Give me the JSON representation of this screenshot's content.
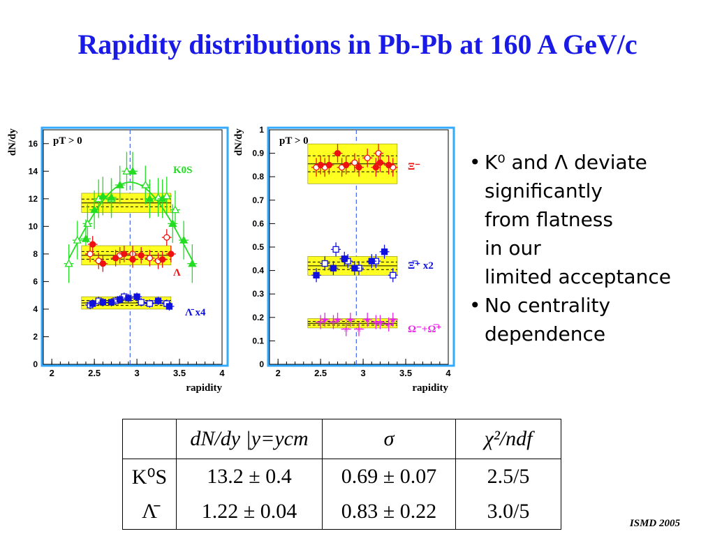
{
  "slide": {
    "title": "Rapidity distributions in Pb-Pb at 160 A GeV/c",
    "bullets": [
      {
        "lines": [
          "K⁰ and Λ deviate",
          "significantly",
          "from flatness",
          "in our",
          "limited acceptance"
        ]
      },
      {
        "lines": [
          "No centrality",
          "dependence"
        ]
      }
    ],
    "footer": "ISMD 2005",
    "colors": {
      "title": "#1a1ae6",
      "green": "#22dd22",
      "red": "#ee1111",
      "blue": "#1111dd",
      "magenta": "#ee22ee",
      "band": "#ffff22",
      "frame": "#33aaff"
    }
  },
  "table": {
    "header": [
      "",
      "dN/dy |y=ycm",
      "σ",
      "χ²/ndf"
    ],
    "rows": [
      {
        "particle": "K⁰S",
        "dndy": "13.2 ± 0.4",
        "sigma": "0.69 ± 0.07",
        "chi2": "2.5/5"
      },
      {
        "particle": "Λ̄",
        "dndy": "1.22 ± 0.04",
        "sigma": "0.83 ± 0.22",
        "chi2": "3.0/5"
      }
    ]
  },
  "chart_data": [
    {
      "type": "scatter",
      "title": "pT > 0",
      "xlabel": "rapidity",
      "ylabel": "dN/dy",
      "xlim": [
        1.9,
        4.0
      ],
      "ylim": [
        0,
        17
      ],
      "xticks": [
        2,
        2.5,
        3,
        3.5,
        4
      ],
      "yticks": [
        0,
        2,
        4,
        6,
        8,
        10,
        12,
        14,
        16
      ],
      "ycm": 2.92,
      "series": [
        {
          "name": "K0S",
          "color": "#22dd22",
          "filled": [
            [
              2.4,
              9.1
            ],
            [
              2.5,
              11.2
            ],
            [
              2.6,
              12.2
            ],
            [
              2.7,
              12.1
            ],
            [
              2.8,
              13.0
            ],
            [
              2.95,
              14.0
            ],
            [
              3.15,
              12.0
            ],
            [
              3.3,
              12.0
            ],
            [
              3.42,
              10.2
            ],
            [
              3.55,
              9.0
            ],
            [
              3.65,
              7.3
            ]
          ],
          "open": [
            [
              2.2,
              7.3
            ],
            [
              2.3,
              9.0
            ],
            [
              2.42,
              10.2
            ],
            [
              2.55,
              12.0
            ],
            [
              2.7,
              12.0
            ],
            [
              2.88,
              14.0
            ],
            [
              3.1,
              13.0
            ],
            [
              3.25,
              12.1
            ],
            [
              3.35,
              12.2
            ],
            [
              3.45,
              11.2
            ]
          ],
          "err": 1.4,
          "fit": {
            "peak": 13.2,
            "center": 2.92,
            "sigma": 0.69
          },
          "band": {
            "x": [
              2.35,
              3.4
            ],
            "y": [
              11.0,
              12.4
            ]
          }
        },
        {
          "name": "Λ",
          "color": "#ee1111",
          "filled": [
            [
              2.48,
              8.7
            ],
            [
              2.6,
              7.3
            ],
            [
              2.75,
              7.7
            ],
            [
              2.85,
              8.0
            ],
            [
              2.95,
              7.6
            ],
            [
              3.05,
              7.9
            ],
            [
              3.3,
              7.6
            ],
            [
              3.4,
              8.0
            ]
          ],
          "open": [
            [
              2.45,
              8.0
            ],
            [
              2.55,
              7.5
            ],
            [
              2.8,
              7.9
            ],
            [
              2.95,
              8.0
            ],
            [
              3.15,
              7.7
            ],
            [
              3.25,
              7.5
            ],
            [
              3.35,
              9.2
            ]
          ],
          "err": 0.6,
          "band": {
            "x": [
              2.35,
              3.4
            ],
            "y": [
              7.2,
              8.6
            ]
          }
        },
        {
          "name": "Λ̄ x4",
          "color": "#1111dd",
          "filled": [
            [
              2.48,
              4.4
            ],
            [
              2.6,
              4.5
            ],
            [
              2.7,
              4.5
            ],
            [
              2.8,
              4.7
            ],
            [
              2.9,
              4.8
            ],
            [
              3.0,
              4.9
            ],
            [
              3.25,
              4.6
            ],
            [
              3.38,
              4.2
            ]
          ],
          "open": [
            [
              2.45,
              4.3
            ],
            [
              2.55,
              4.6
            ],
            [
              2.75,
              4.6
            ],
            [
              2.85,
              4.9
            ],
            [
              3.05,
              4.5
            ],
            [
              3.15,
              4.4
            ],
            [
              3.35,
              4.4
            ]
          ],
          "err": 0.3,
          "band": {
            "x": [
              2.35,
              3.4
            ],
            "y": [
              4.0,
              4.9
            ]
          }
        }
      ]
    },
    {
      "type": "scatter",
      "title": "pT > 0",
      "xlabel": "rapidity",
      "ylabel": "dN/dy",
      "xlim": [
        1.9,
        4.0
      ],
      "ylim": [
        0,
        1
      ],
      "xticks": [
        2,
        2.5,
        3,
        3.5,
        4
      ],
      "yticks": [
        0,
        0.1,
        0.2,
        0.3,
        0.4,
        0.5,
        0.6,
        0.7,
        0.8,
        0.9,
        1
      ],
      "ycm": 2.92,
      "series": [
        {
          "name": "Ξ⁻",
          "color": "#ee1111",
          "filled": [
            [
              2.5,
              0.85
            ],
            [
              2.6,
              0.85
            ],
            [
              2.7,
              0.9
            ],
            [
              2.8,
              0.85
            ],
            [
              2.95,
              0.84
            ],
            [
              3.15,
              0.84
            ],
            [
              3.2,
              0.86
            ],
            [
              3.3,
              0.85
            ]
          ],
          "open": [
            [
              2.45,
              0.84
            ],
            [
              2.55,
              0.84
            ],
            [
              2.75,
              0.84
            ],
            [
              2.9,
              0.86
            ],
            [
              3.05,
              0.88
            ],
            [
              3.18,
              0.9
            ],
            [
              3.35,
              0.84
            ]
          ],
          "err": 0.04,
          "band": {
            "x": [
              2.35,
              3.4
            ],
            "y": [
              0.77,
              0.94
            ]
          }
        },
        {
          "name": "Ξ̅⁺ x2",
          "color": "#1111dd",
          "filled": [
            [
              2.45,
              0.38
            ],
            [
              2.65,
              0.41
            ],
            [
              2.78,
              0.45
            ],
            [
              2.9,
              0.41
            ],
            [
              3.1,
              0.44
            ],
            [
              3.25,
              0.48
            ]
          ],
          "open": [
            [
              2.55,
              0.43
            ],
            [
              2.68,
              0.49
            ],
            [
              2.82,
              0.44
            ],
            [
              2.95,
              0.41
            ],
            [
              3.15,
              0.44
            ],
            [
              3.35,
              0.38
            ]
          ],
          "err": 0.03,
          "band": {
            "x": [
              2.35,
              3.4
            ],
            "y": [
              0.38,
              0.46
            ]
          }
        },
        {
          "name": "Ω⁻+Ω̅⁺",
          "color": "#ee22ee",
          "filled": [
            [
              2.55,
              0.19
            ],
            [
              2.7,
              0.19
            ],
            [
              2.85,
              0.19
            ],
            [
              3.05,
              0.19
            ],
            [
              3.2,
              0.18
            ],
            [
              3.35,
              0.19
            ]
          ],
          "open": [
            [
              2.5,
              0.18
            ],
            [
              2.65,
              0.18
            ],
            [
              2.8,
              0.15
            ],
            [
              2.95,
              0.15
            ],
            [
              3.15,
              0.18
            ],
            [
              3.3,
              0.17
            ]
          ],
          "err": 0.03,
          "band": {
            "x": [
              2.35,
              3.4
            ],
            "y": [
              0.155,
              0.195
            ]
          }
        }
      ]
    }
  ]
}
